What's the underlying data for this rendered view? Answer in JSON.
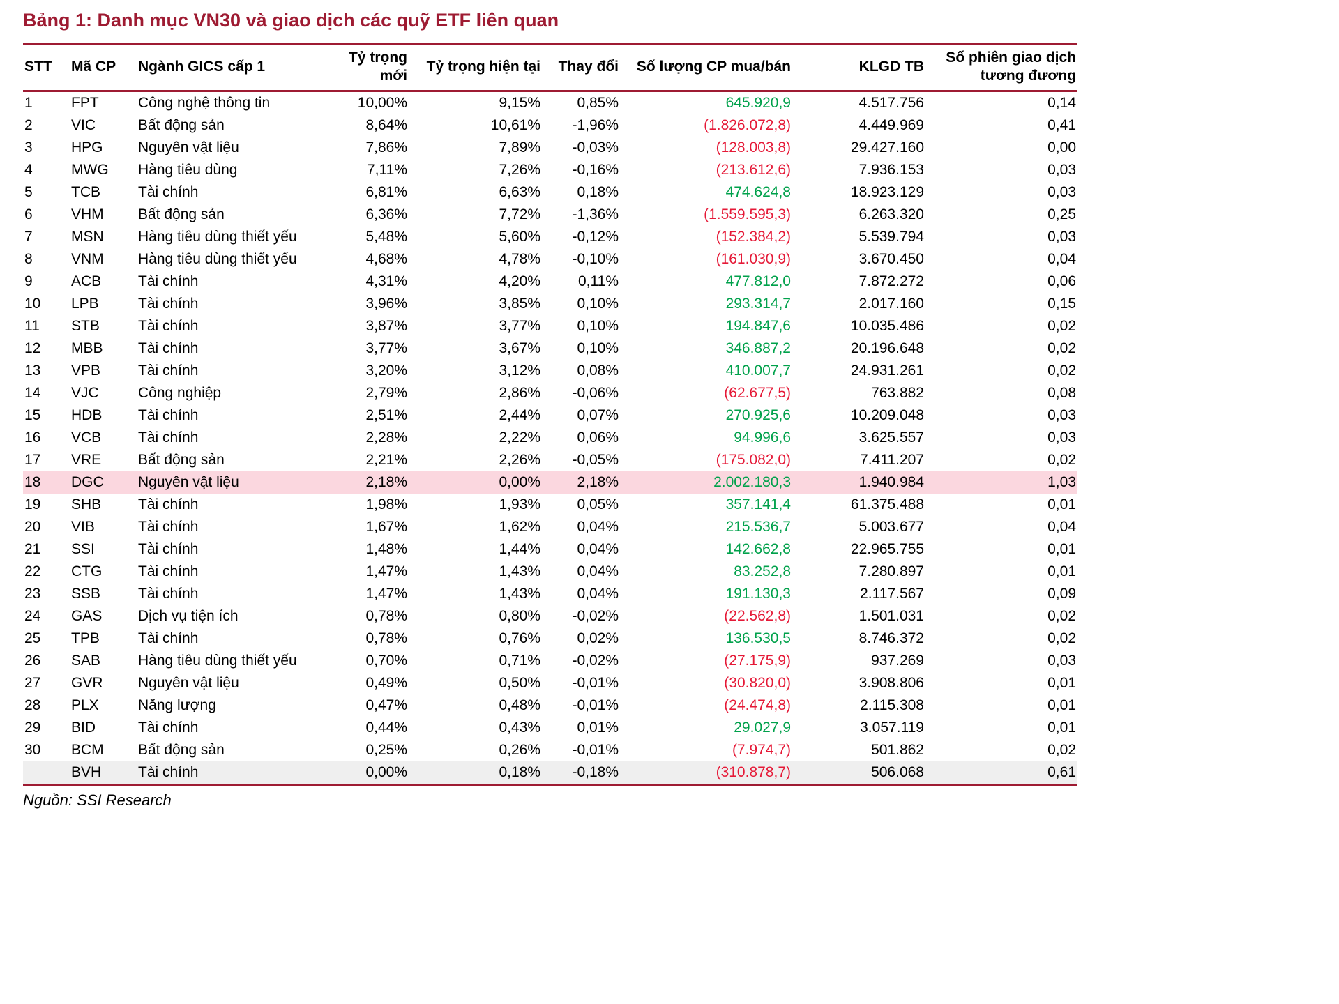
{
  "title": "Bảng 1: Danh mục VN30 và giao dịch các quỹ ETF liên quan",
  "source": "Nguồn: SSI Research",
  "colors": {
    "accent": "#9E1B32",
    "positive": "#00A14B",
    "negative": "#E51937",
    "highlight_row_bg": "#FBD7DF",
    "last_row_bg": "#EFEFEF"
  },
  "table": {
    "headers": [
      "STT",
      "Mã CP",
      "Ngành GICS cấp 1",
      "Tỷ trọng mới",
      "Tỷ trọng hiện tại",
      "Thay đổi",
      "Số lượng CP mua/bán",
      "KLGD TB",
      "Số phiên giao dịch tương đương"
    ],
    "rows": [
      {
        "stt": "1",
        "code": "FPT",
        "sector": "Công nghệ thông tin",
        "new_weight": "10,00%",
        "cur_weight": "9,15%",
        "change": "0,85%",
        "shares": "645.920,9",
        "shares_sign": "pos",
        "avg_volume": "4.517.756",
        "sessions": "0,14",
        "highlight": false,
        "gray": false
      },
      {
        "stt": "2",
        "code": "VIC",
        "sector": "Bất động sản",
        "new_weight": "8,64%",
        "cur_weight": "10,61%",
        "change": "-1,96%",
        "shares": "(1.826.072,8)",
        "shares_sign": "neg",
        "avg_volume": "4.449.969",
        "sessions": "0,41",
        "highlight": false,
        "gray": false
      },
      {
        "stt": "3",
        "code": "HPG",
        "sector": "Nguyên vật liệu",
        "new_weight": "7,86%",
        "cur_weight": "7,89%",
        "change": "-0,03%",
        "shares": "(128.003,8)",
        "shares_sign": "neg",
        "avg_volume": "29.427.160",
        "sessions": "0,00",
        "highlight": false,
        "gray": false
      },
      {
        "stt": "4",
        "code": "MWG",
        "sector": "Hàng tiêu dùng",
        "new_weight": "7,11%",
        "cur_weight": "7,26%",
        "change": "-0,16%",
        "shares": "(213.612,6)",
        "shares_sign": "neg",
        "avg_volume": "7.936.153",
        "sessions": "0,03",
        "highlight": false,
        "gray": false
      },
      {
        "stt": "5",
        "code": "TCB",
        "sector": "Tài chính",
        "new_weight": "6,81%",
        "cur_weight": "6,63%",
        "change": "0,18%",
        "shares": "474.624,8",
        "shares_sign": "pos",
        "avg_volume": "18.923.129",
        "sessions": "0,03",
        "highlight": false,
        "gray": false
      },
      {
        "stt": "6",
        "code": "VHM",
        "sector": "Bất động sản",
        "new_weight": "6,36%",
        "cur_weight": "7,72%",
        "change": "-1,36%",
        "shares": "(1.559.595,3)",
        "shares_sign": "neg",
        "avg_volume": "6.263.320",
        "sessions": "0,25",
        "highlight": false,
        "gray": false
      },
      {
        "stt": "7",
        "code": "MSN",
        "sector": "Hàng tiêu dùng thiết yếu",
        "new_weight": "5,48%",
        "cur_weight": "5,60%",
        "change": "-0,12%",
        "shares": "(152.384,2)",
        "shares_sign": "neg",
        "avg_volume": "5.539.794",
        "sessions": "0,03",
        "highlight": false,
        "gray": false
      },
      {
        "stt": "8",
        "code": "VNM",
        "sector": "Hàng tiêu dùng thiết yếu",
        "new_weight": "4,68%",
        "cur_weight": "4,78%",
        "change": "-0,10%",
        "shares": "(161.030,9)",
        "shares_sign": "neg",
        "avg_volume": "3.670.450",
        "sessions": "0,04",
        "highlight": false,
        "gray": false
      },
      {
        "stt": "9",
        "code": "ACB",
        "sector": "Tài chính",
        "new_weight": "4,31%",
        "cur_weight": "4,20%",
        "change": "0,11%",
        "shares": "477.812,0",
        "shares_sign": "pos",
        "avg_volume": "7.872.272",
        "sessions": "0,06",
        "highlight": false,
        "gray": false
      },
      {
        "stt": "10",
        "code": "LPB",
        "sector": "Tài chính",
        "new_weight": "3,96%",
        "cur_weight": "3,85%",
        "change": "0,10%",
        "shares": "293.314,7",
        "shares_sign": "pos",
        "avg_volume": "2.017.160",
        "sessions": "0,15",
        "highlight": false,
        "gray": false
      },
      {
        "stt": "11",
        "code": "STB",
        "sector": "Tài chính",
        "new_weight": "3,87%",
        "cur_weight": "3,77%",
        "change": "0,10%",
        "shares": "194.847,6",
        "shares_sign": "pos",
        "avg_volume": "10.035.486",
        "sessions": "0,02",
        "highlight": false,
        "gray": false
      },
      {
        "stt": "12",
        "code": "MBB",
        "sector": "Tài chính",
        "new_weight": "3,77%",
        "cur_weight": "3,67%",
        "change": "0,10%",
        "shares": "346.887,2",
        "shares_sign": "pos",
        "avg_volume": "20.196.648",
        "sessions": "0,02",
        "highlight": false,
        "gray": false
      },
      {
        "stt": "13",
        "code": "VPB",
        "sector": "Tài chính",
        "new_weight": "3,20%",
        "cur_weight": "3,12%",
        "change": "0,08%",
        "shares": "410.007,7",
        "shares_sign": "pos",
        "avg_volume": "24.931.261",
        "sessions": "0,02",
        "highlight": false,
        "gray": false
      },
      {
        "stt": "14",
        "code": "VJC",
        "sector": "Công nghiệp",
        "new_weight": "2,79%",
        "cur_weight": "2,86%",
        "change": "-0,06%",
        "shares": "(62.677,5)",
        "shares_sign": "neg",
        "avg_volume": "763.882",
        "sessions": "0,08",
        "highlight": false,
        "gray": false
      },
      {
        "stt": "15",
        "code": "HDB",
        "sector": "Tài chính",
        "new_weight": "2,51%",
        "cur_weight": "2,44%",
        "change": "0,07%",
        "shares": "270.925,6",
        "shares_sign": "pos",
        "avg_volume": "10.209.048",
        "sessions": "0,03",
        "highlight": false,
        "gray": false
      },
      {
        "stt": "16",
        "code": "VCB",
        "sector": "Tài chính",
        "new_weight": "2,28%",
        "cur_weight": "2,22%",
        "change": "0,06%",
        "shares": "94.996,6",
        "shares_sign": "pos",
        "avg_volume": "3.625.557",
        "sessions": "0,03",
        "highlight": false,
        "gray": false
      },
      {
        "stt": "17",
        "code": "VRE",
        "sector": "Bất động sản",
        "new_weight": "2,21%",
        "cur_weight": "2,26%",
        "change": "-0,05%",
        "shares": "(175.082,0)",
        "shares_sign": "neg",
        "avg_volume": "7.411.207",
        "sessions": "0,02",
        "highlight": false,
        "gray": false
      },
      {
        "stt": "18",
        "code": "DGC",
        "sector": "Nguyên vật liệu",
        "new_weight": "2,18%",
        "cur_weight": "0,00%",
        "change": "2,18%",
        "shares": "2.002.180,3",
        "shares_sign": "pos",
        "avg_volume": "1.940.984",
        "sessions": "1,03",
        "highlight": true,
        "gray": false
      },
      {
        "stt": "19",
        "code": "SHB",
        "sector": "Tài chính",
        "new_weight": "1,98%",
        "cur_weight": "1,93%",
        "change": "0,05%",
        "shares": "357.141,4",
        "shares_sign": "pos",
        "avg_volume": "61.375.488",
        "sessions": "0,01",
        "highlight": false,
        "gray": false
      },
      {
        "stt": "20",
        "code": "VIB",
        "sector": "Tài chính",
        "new_weight": "1,67%",
        "cur_weight": "1,62%",
        "change": "0,04%",
        "shares": "215.536,7",
        "shares_sign": "pos",
        "avg_volume": "5.003.677",
        "sessions": "0,04",
        "highlight": false,
        "gray": false
      },
      {
        "stt": "21",
        "code": "SSI",
        "sector": "Tài chính",
        "new_weight": "1,48%",
        "cur_weight": "1,44%",
        "change": "0,04%",
        "shares": "142.662,8",
        "shares_sign": "pos",
        "avg_volume": "22.965.755",
        "sessions": "0,01",
        "highlight": false,
        "gray": false
      },
      {
        "stt": "22",
        "code": "CTG",
        "sector": "Tài chính",
        "new_weight": "1,47%",
        "cur_weight": "1,43%",
        "change": "0,04%",
        "shares": "83.252,8",
        "shares_sign": "pos",
        "avg_volume": "7.280.897",
        "sessions": "0,01",
        "highlight": false,
        "gray": false
      },
      {
        "stt": "23",
        "code": "SSB",
        "sector": "Tài chính",
        "new_weight": "1,47%",
        "cur_weight": "1,43%",
        "change": "0,04%",
        "shares": "191.130,3",
        "shares_sign": "pos",
        "avg_volume": "2.117.567",
        "sessions": "0,09",
        "highlight": false,
        "gray": false
      },
      {
        "stt": "24",
        "code": "GAS",
        "sector": "Dịch vụ tiện ích",
        "new_weight": "0,78%",
        "cur_weight": "0,80%",
        "change": "-0,02%",
        "shares": "(22.562,8)",
        "shares_sign": "neg",
        "avg_volume": "1.501.031",
        "sessions": "0,02",
        "highlight": false,
        "gray": false
      },
      {
        "stt": "25",
        "code": "TPB",
        "sector": "Tài chính",
        "new_weight": "0,78%",
        "cur_weight": "0,76%",
        "change": "0,02%",
        "shares": "136.530,5",
        "shares_sign": "pos",
        "avg_volume": "8.746.372",
        "sessions": "0,02",
        "highlight": false,
        "gray": false
      },
      {
        "stt": "26",
        "code": "SAB",
        "sector": "Hàng tiêu dùng thiết yếu",
        "new_weight": "0,70%",
        "cur_weight": "0,71%",
        "change": "-0,02%",
        "shares": "(27.175,9)",
        "shares_sign": "neg",
        "avg_volume": "937.269",
        "sessions": "0,03",
        "highlight": false,
        "gray": false
      },
      {
        "stt": "27",
        "code": "GVR",
        "sector": "Nguyên vật liệu",
        "new_weight": "0,49%",
        "cur_weight": "0,50%",
        "change": "-0,01%",
        "shares": "(30.820,0)",
        "shares_sign": "neg",
        "avg_volume": "3.908.806",
        "sessions": "0,01",
        "highlight": false,
        "gray": false
      },
      {
        "stt": "28",
        "code": "PLX",
        "sector": "Năng lượng",
        "new_weight": "0,47%",
        "cur_weight": "0,48%",
        "change": "-0,01%",
        "shares": "(24.474,8)",
        "shares_sign": "neg",
        "avg_volume": "2.115.308",
        "sessions": "0,01",
        "highlight": false,
        "gray": false
      },
      {
        "stt": "29",
        "code": "BID",
        "sector": "Tài chính",
        "new_weight": "0,44%",
        "cur_weight": "0,43%",
        "change": "0,01%",
        "shares": "29.027,9",
        "shares_sign": "pos",
        "avg_volume": "3.057.119",
        "sessions": "0,01",
        "highlight": false,
        "gray": false
      },
      {
        "stt": "30",
        "code": "BCM",
        "sector": "Bất động sản",
        "new_weight": "0,25%",
        "cur_weight": "0,26%",
        "change": "-0,01%",
        "shares": "(7.974,7)",
        "shares_sign": "neg",
        "avg_volume": "501.862",
        "sessions": "0,02",
        "highlight": false,
        "gray": false
      },
      {
        "stt": "",
        "code": "BVH",
        "sector": "Tài chính",
        "new_weight": "0,00%",
        "cur_weight": "0,18%",
        "change": "-0,18%",
        "shares": "(310.878,7)",
        "shares_sign": "neg",
        "avg_volume": "506.068",
        "sessions": "0,61",
        "highlight": false,
        "gray": true
      }
    ]
  }
}
